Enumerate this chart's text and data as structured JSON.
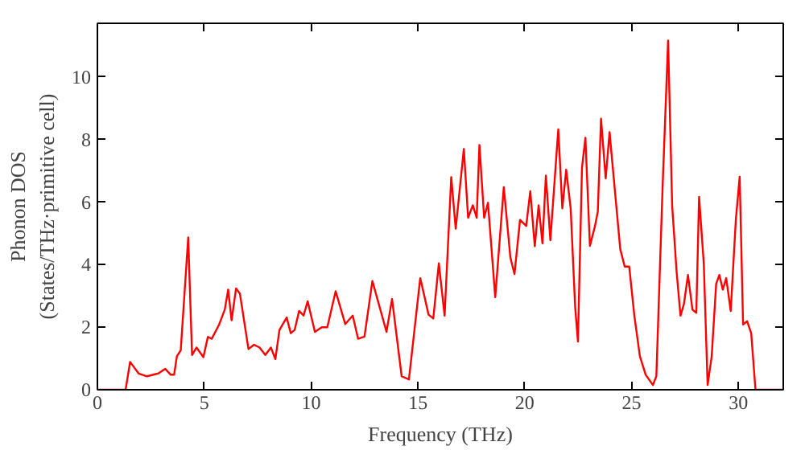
{
  "chart_data": {
    "type": "line",
    "xlabel": "Frequency (THz)",
    "ylabel": "Phonon DOS\n(States/THz·primitive cell)",
    "x": [
      0,
      1.32,
      1.53,
      1.93,
      2.32,
      2.85,
      3.17,
      3.43,
      3.59,
      3.72,
      3.9,
      4.25,
      4.43,
      4.64,
      4.96,
      5.17,
      5.35,
      5.7,
      5.96,
      6.12,
      6.28,
      6.49,
      6.67,
      7.07,
      7.33,
      7.59,
      7.86,
      8.12,
      8.33,
      8.52,
      8.86,
      9.05,
      9.23,
      9.44,
      9.65,
      9.84,
      10.18,
      10.5,
      10.76,
      11.15,
      11.6,
      11.95,
      12.2,
      12.5,
      12.87,
      13.53,
      13.79,
      14.24,
      14.58,
      15.11,
      15.5,
      15.72,
      15.98,
      16.25,
      16.56,
      16.77,
      17.15,
      17.35,
      17.57,
      17.75,
      17.88,
      18.1,
      18.28,
      18.62,
      19.02,
      19.33,
      19.52,
      19.78,
      20.07,
      20.26,
      20.47,
      20.65,
      20.83,
      20.99,
      21.2,
      21.57,
      21.76,
      21.94,
      22.15,
      22.36,
      22.49,
      22.68,
      22.84,
      23.05,
      23.29,
      23.42,
      23.57,
      23.79,
      23.97,
      24.21,
      24.47,
      24.68,
      24.89,
      25.13,
      25.39,
      25.66,
      26.0,
      26.16,
      26.45,
      26.71,
      26.9,
      27.11,
      27.29,
      27.45,
      27.64,
      27.85,
      28.03,
      28.16,
      28.38,
      28.56,
      28.75,
      28.96,
      29.11,
      29.27,
      29.43,
      29.64,
      29.88,
      30.06,
      30.22,
      30.41,
      30.6,
      30.8,
      32.1
    ],
    "series": [
      {
        "color": "#ff0000",
        "values": [
          0,
          0,
          0.89,
          0.52,
          0.43,
          0.52,
          0.67,
          0.48,
          0.48,
          1.07,
          1.26,
          4.87,
          1.11,
          1.35,
          1.04,
          1.69,
          1.63,
          2.09,
          2.56,
          3.2,
          2.22,
          3.24,
          3.07,
          1.3,
          1.44,
          1.35,
          1.11,
          1.35,
          0.98,
          1.91,
          2.31,
          1.81,
          1.91,
          2.52,
          2.37,
          2.83,
          1.85,
          2.0,
          2.0,
          3.15,
          2.1,
          2.37,
          1.63,
          1.7,
          3.48,
          1.85,
          2.9,
          0.43,
          0.33,
          3.57,
          2.4,
          2.28,
          4.04,
          2.37,
          6.8,
          5.15,
          7.7,
          5.5,
          5.9,
          5.5,
          7.83,
          5.5,
          5.98,
          2.96,
          6.48,
          4.22,
          3.7,
          5.43,
          5.24,
          6.35,
          4.59,
          5.9,
          4.68,
          6.85,
          4.78,
          8.33,
          5.8,
          7.04,
          5.8,
          2.65,
          1.54,
          7.1,
          8.06,
          4.6,
          5.24,
          5.7,
          8.67,
          6.76,
          8.24,
          6.44,
          4.5,
          3.94,
          3.94,
          2.37,
          1.07,
          0.48,
          0.15,
          0.43,
          6.44,
          11.17,
          5.89,
          3.76,
          2.37,
          2.74,
          3.67,
          2.56,
          2.46,
          6.17,
          4.04,
          0.15,
          1.07,
          3.39,
          3.67,
          3.2,
          3.57,
          2.52,
          5.43,
          6.81,
          2.09,
          2.19,
          1.81,
          0,
          0
        ]
      }
    ],
    "xlim": [
      0,
      32.1
    ],
    "ylim": [
      0,
      11.72
    ],
    "xticks": [
      0,
      5,
      10,
      15,
      20,
      25,
      30
    ],
    "yticks": [
      0,
      2,
      4,
      6,
      8,
      10
    ],
    "grid": false
  }
}
